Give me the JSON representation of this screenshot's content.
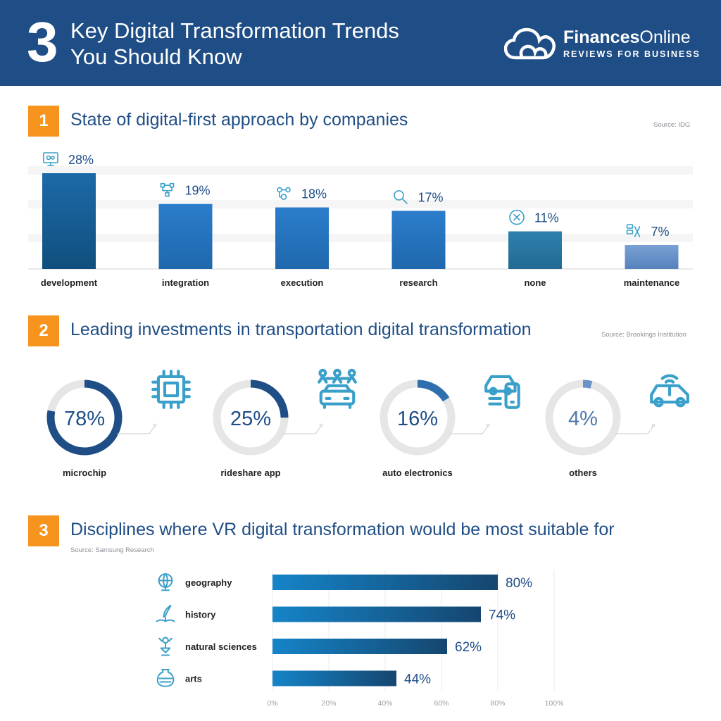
{
  "header": {
    "number": "3",
    "title_line1": "Key Digital Transformation Trends",
    "title_line2": "You Should Know",
    "brand_bold": "Finances",
    "brand_regular": "Online",
    "tagline": "REVIEWS FOR BUSINESS",
    "logo_icon": "cloud-icon"
  },
  "colors": {
    "header_bg": "#1f4e86",
    "accent_orange": "#f7941d",
    "bar_dark": "#1b5f94",
    "bar_mid": "#2a78c6",
    "bar_teal": "#2b77a3",
    "bar_light": "#6b93c9",
    "donut_dark": "#1f4e86",
    "donut_track": "#e6e6e6",
    "icon_color": "#3aa0c9"
  },
  "sections": [
    {
      "number": "1",
      "title": "State of digital-first approach by companies",
      "source": "Source: IDG"
    },
    {
      "number": "2",
      "title": "Leading investments in transportation digital transformation",
      "source": "Source: Brookings Institution"
    },
    {
      "number": "3",
      "title": "Disciplines where VR digital transformation would be most suitable for",
      "source": "Source: Samsung Research"
    }
  ],
  "chart_data": [
    {
      "type": "bar",
      "categories": [
        "development",
        "integration",
        "execution",
        "research",
        "none",
        "maintenance"
      ],
      "values": [
        28,
        19,
        18,
        17,
        11,
        7
      ],
      "value_labels": [
        "28%",
        "19%",
        "18%",
        "17%",
        "11%",
        "7%"
      ],
      "icons": [
        "gears-monitor-icon",
        "network-icon",
        "process-icon",
        "magnifier-icon",
        "x-circle-icon",
        "tools-icon"
      ],
      "ylim": [
        0,
        28
      ],
      "grid": false
    },
    {
      "type": "pie",
      "categories": [
        "microchip",
        "rideshare app",
        "auto electronics",
        "others"
      ],
      "values": [
        78,
        25,
        16,
        4
      ],
      "value_labels": [
        "78%",
        "25%",
        "16%",
        "4%"
      ],
      "icons": [
        "microchip-icon",
        "rideshare-car-icon",
        "car-phone-icon",
        "connected-car-icon"
      ]
    },
    {
      "type": "bar",
      "orientation": "horizontal",
      "categories": [
        "geography",
        "history",
        "natural sciences",
        "arts"
      ],
      "values": [
        80,
        74,
        62,
        44
      ],
      "value_labels": [
        "80%",
        "74%",
        "62%",
        "44%"
      ],
      "icons": [
        "globe-icon",
        "quill-book-icon",
        "microscope-icon",
        "vase-icon"
      ],
      "xticks": [
        "0%",
        "20%",
        "40%",
        "60%",
        "80%",
        "100%"
      ],
      "xlim": [
        0,
        100
      ],
      "grid": true
    }
  ]
}
